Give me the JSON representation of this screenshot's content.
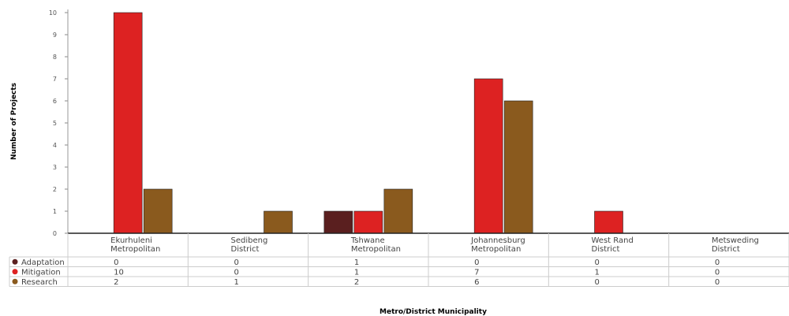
{
  "chart_data": {
    "type": "bar",
    "title": "",
    "xlabel": "Metro/District Municipality",
    "ylabel": "Number of Projects",
    "ylim": [
      0,
      10
    ],
    "yticks": [
      0,
      1,
      2,
      3,
      4,
      5,
      6,
      7,
      8,
      9,
      10
    ],
    "grid": false,
    "legend": "data-table-left",
    "categories": [
      [
        "Ekurhuleni",
        "Metropolitan"
      ],
      [
        "Sedibeng",
        "District"
      ],
      [
        "Tshwane",
        "Metropolitan"
      ],
      [
        "Johannesburg",
        "Metropolitan"
      ],
      [
        "West Rand",
        "District"
      ],
      [
        "Metsweding",
        "District"
      ]
    ],
    "series": [
      {
        "name": "Adaptation",
        "color": "#5a1f1f",
        "values": [
          0,
          0,
          1,
          0,
          0,
          0
        ]
      },
      {
        "name": "Mitigation",
        "color": "#dd2222",
        "values": [
          10,
          0,
          1,
          7,
          1,
          0
        ]
      },
      {
        "name": "Research",
        "color": "#8a5a1e",
        "values": [
          2,
          1,
          2,
          6,
          0,
          0
        ]
      }
    ]
  }
}
